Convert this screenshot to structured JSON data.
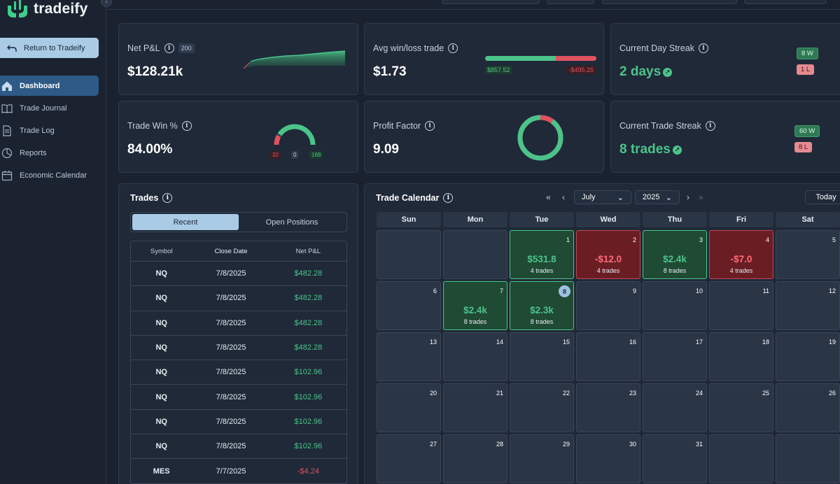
{
  "app": {
    "name": "tradeify"
  },
  "sidebar": {
    "return_label": "Return to Tradeify",
    "items": [
      {
        "label": "Dashboard",
        "icon": "home-icon",
        "active": true
      },
      {
        "label": "Trade Journal",
        "icon": "book-icon",
        "active": false
      },
      {
        "label": "Trade Log",
        "icon": "document-icon",
        "active": false
      },
      {
        "label": "Reports",
        "icon": "pie-chart-icon",
        "active": false
      },
      {
        "label": "Economic Calendar",
        "icon": "calendar-icon",
        "active": false
      }
    ]
  },
  "stats": {
    "net_pnl": {
      "title": "Net P&L",
      "count": "200",
      "value": "$128.21k"
    },
    "avg_win_loss": {
      "title": "Avg win/loss trade",
      "value": "$1.73",
      "win": "$857.52",
      "loss": "-$495.25",
      "win_fraction": 0.634
    },
    "day_streak": {
      "title": "Current Day Streak",
      "value": "2 days",
      "wins": "8 W",
      "losses": "1 L"
    },
    "trade_win": {
      "title": "Trade Win %",
      "value": "84.00%",
      "losses": "32",
      "breakeven": "0",
      "wins": "168",
      "win_fraction": 0.84
    },
    "profit_factor": {
      "title": "Profit Factor",
      "value": "9.09",
      "win_fraction": 0.9
    },
    "trade_streak": {
      "title": "Current Trade Streak",
      "value": "8 trades",
      "wins": "60 W",
      "losses": "8 L"
    }
  },
  "trades_panel": {
    "title": "Trades",
    "tabs": [
      {
        "label": "Recent",
        "active": true
      },
      {
        "label": "Open Positions",
        "active": false
      }
    ],
    "columns": [
      "Symbol",
      "Close Date",
      "Net P&L"
    ],
    "rows": [
      {
        "symbol": "NQ",
        "date": "7/8/2025",
        "pnl": "$482.28",
        "positive": true
      },
      {
        "symbol": "NQ",
        "date": "7/8/2025",
        "pnl": "$482.28",
        "positive": true
      },
      {
        "symbol": "NQ",
        "date": "7/8/2025",
        "pnl": "$482.28",
        "positive": true
      },
      {
        "symbol": "NQ",
        "date": "7/8/2025",
        "pnl": "$482.28",
        "positive": true
      },
      {
        "symbol": "NQ",
        "date": "7/8/2025",
        "pnl": "$102.96",
        "positive": true
      },
      {
        "symbol": "NQ",
        "date": "7/8/2025",
        "pnl": "$102.96",
        "positive": true
      },
      {
        "symbol": "NQ",
        "date": "7/8/2025",
        "pnl": "$102.96",
        "positive": true
      },
      {
        "symbol": "NQ",
        "date": "7/8/2025",
        "pnl": "$102.96",
        "positive": true
      },
      {
        "symbol": "MES",
        "date": "7/7/2025",
        "pnl": "-$4.24",
        "positive": false
      }
    ]
  },
  "calendar": {
    "title": "Trade Calendar",
    "month": "July",
    "year": "2025",
    "today_label": "Today",
    "weekdays": [
      "Sun",
      "Mon",
      "Tue",
      "Wed",
      "Thu",
      "Fri",
      "Sat"
    ],
    "first_weekday": 2,
    "days_in_month": 31,
    "today": 8,
    "days": {
      "1": {
        "pnl": "$531.8",
        "trades": "4 trades",
        "result": "win"
      },
      "2": {
        "pnl": "-$12.0",
        "trades": "4 trades",
        "result": "loss"
      },
      "3": {
        "pnl": "$2.4k",
        "trades": "8 trades",
        "result": "win"
      },
      "4": {
        "pnl": "-$7.0",
        "trades": "4 trades",
        "result": "loss"
      },
      "7": {
        "pnl": "$2.4k",
        "trades": "8 trades",
        "result": "win"
      },
      "8": {
        "pnl": "$2.3k",
        "trades": "8 trades",
        "result": "win"
      }
    }
  }
}
